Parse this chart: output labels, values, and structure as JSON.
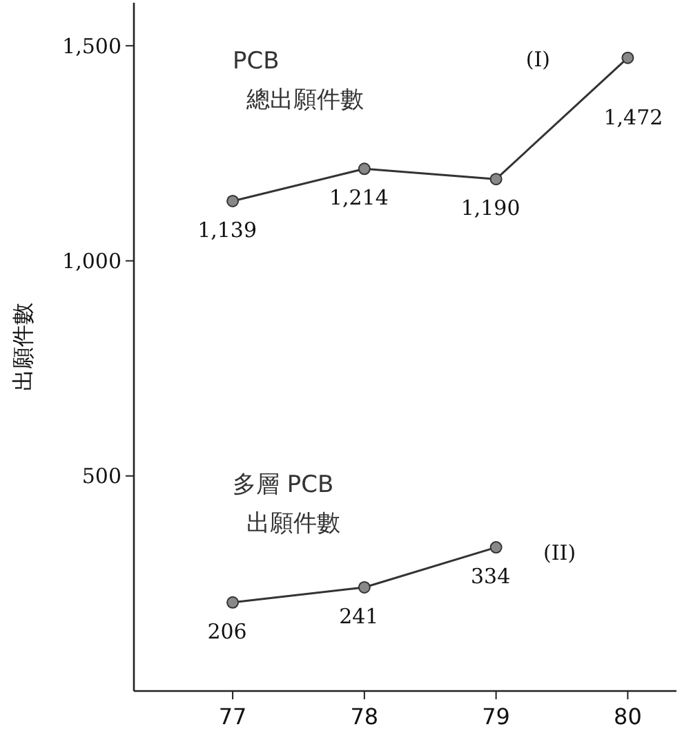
{
  "chart_data": {
    "type": "line",
    "x": [
      77,
      78,
      79,
      80
    ],
    "xlim": [
      76.25,
      80.37
    ],
    "xticks": [
      77,
      78,
      79,
      80
    ],
    "ylim": [
      0,
      1600
    ],
    "yticks": [
      {
        "value": 500,
        "label": "500"
      },
      {
        "value": 1000,
        "label": "1,000"
      },
      {
        "value": 1500,
        "label": "1,500"
      }
    ],
    "ylabel": "出願件數",
    "grid": false,
    "marker": "circle",
    "line_style": "solid",
    "series": [
      {
        "name": "PCB 總出願件數",
        "color": "#333333",
        "values": [
          1139,
          1214,
          1190,
          1472
        ],
        "value_labels": [
          "1,139",
          "1,214",
          "1,190",
          "1,472"
        ]
      },
      {
        "name": "多層 PCB 出願件數",
        "color": "#333333",
        "values": [
          206,
          241,
          334,
          null
        ],
        "value_labels": [
          "206",
          "241",
          "334",
          null
        ]
      }
    ],
    "annotations": [
      "(I)",
      "(II)"
    ]
  }
}
